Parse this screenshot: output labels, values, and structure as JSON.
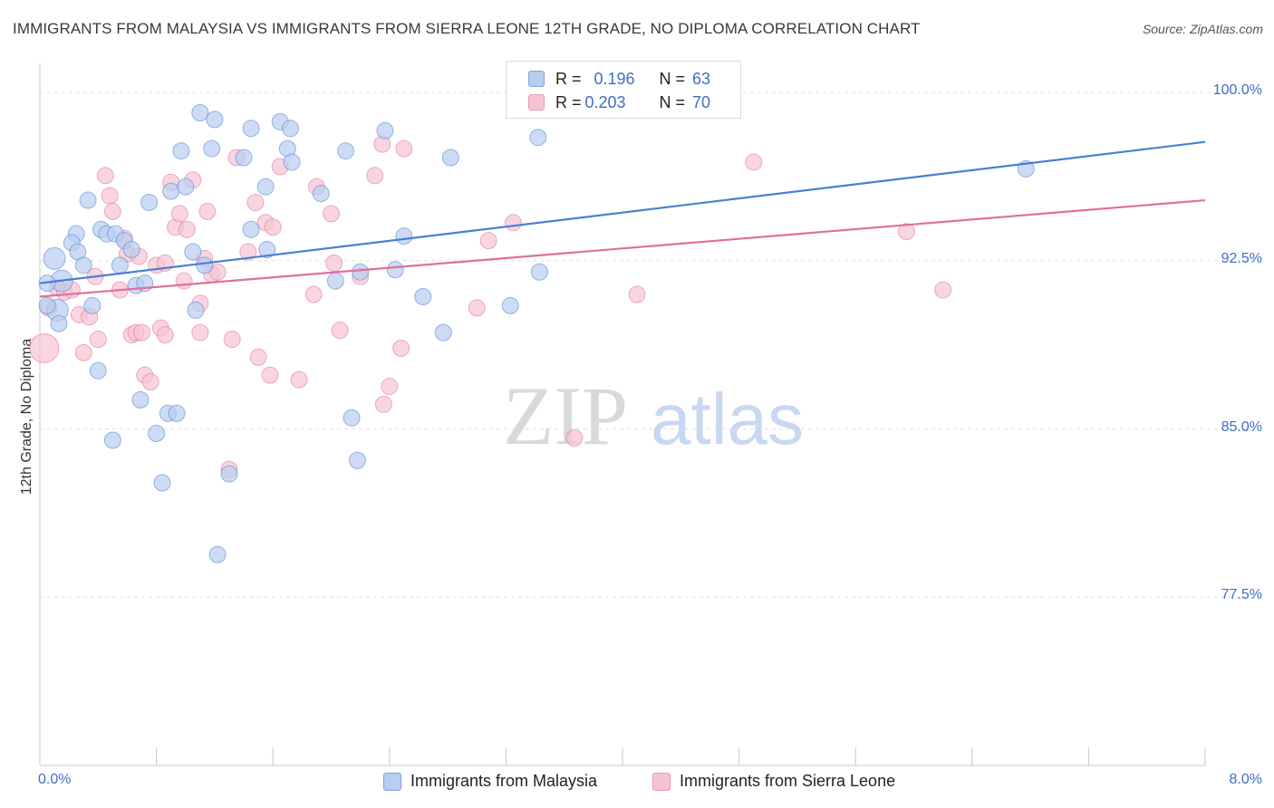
{
  "title": "IMMIGRANTS FROM MALAYSIA VS IMMIGRANTS FROM SIERRA LEONE 12TH GRADE, NO DIPLOMA CORRELATION CHART",
  "source": "Source: ZipAtlas.com",
  "watermark": {
    "zip": "ZIP",
    "atlas": "atlas"
  },
  "legend_stats": [
    {
      "r_label": "R =",
      "r_value": "0.196",
      "n_label": "N =",
      "n_value": "63",
      "color": "#4a7fd4"
    },
    {
      "r_label": "R =",
      "r_value": "0.203",
      "n_label": "N =",
      "n_value": "70",
      "color": "#e0709a"
    }
  ],
  "chart_data": {
    "type": "scatter",
    "title": "IMMIGRANTS FROM MALAYSIA VS IMMIGRANTS FROM SIERRA LEONE 12TH GRADE, NO DIPLOMA CORRELATION CHART",
    "xlabel": "",
    "ylabel": "12th Grade, No Diploma",
    "xlim": [
      0.0,
      8.0
    ],
    "ylim": [
      70.0,
      101.3
    ],
    "x_tick_labels": [
      "0.0%",
      "8.0%"
    ],
    "y_tick_labels": [
      "100.0%",
      "92.5%",
      "85.0%",
      "77.5%"
    ],
    "y_ticks": [
      100.0,
      92.5,
      85.0,
      77.5
    ],
    "grid": "horizontal dashed",
    "legend_position": "bottom-center",
    "series": [
      {
        "name": "Immigrants from Malaysia",
        "color": "#4a7fd4",
        "fill": "#b8cdef",
        "trend": {
          "x": [
            0.0,
            8.0
          ],
          "y": [
            91.5,
            97.8
          ]
        },
        "points": [
          [
            0.1,
            92.6
          ],
          [
            0.15,
            91.6
          ],
          [
            0.12,
            90.3
          ],
          [
            0.13,
            89.7
          ],
          [
            0.05,
            91.5
          ],
          [
            0.05,
            90.5
          ],
          [
            0.25,
            93.7
          ],
          [
            0.22,
            93.3
          ],
          [
            0.26,
            92.9
          ],
          [
            0.3,
            92.3
          ],
          [
            0.33,
            95.2
          ],
          [
            0.36,
            90.5
          ],
          [
            0.4,
            87.6
          ],
          [
            0.42,
            93.9
          ],
          [
            0.46,
            93.7
          ],
          [
            0.5,
            84.5
          ],
          [
            0.52,
            93.7
          ],
          [
            0.55,
            92.3
          ],
          [
            0.58,
            93.4
          ],
          [
            0.63,
            93.0
          ],
          [
            0.66,
            91.4
          ],
          [
            0.69,
            86.3
          ],
          [
            0.72,
            91.5
          ],
          [
            0.75,
            95.1
          ],
          [
            0.8,
            84.8
          ],
          [
            0.84,
            82.6
          ],
          [
            0.88,
            85.7
          ],
          [
            0.9,
            95.6
          ],
          [
            0.94,
            85.7
          ],
          [
            0.97,
            97.4
          ],
          [
            1.0,
            95.8
          ],
          [
            1.05,
            92.9
          ],
          [
            1.07,
            90.3
          ],
          [
            1.1,
            99.1
          ],
          [
            1.13,
            92.3
          ],
          [
            1.18,
            97.5
          ],
          [
            1.2,
            98.8
          ],
          [
            1.22,
            79.4
          ],
          [
            1.3,
            83.0
          ],
          [
            1.4,
            97.1
          ],
          [
            1.45,
            93.9
          ],
          [
            1.45,
            98.4
          ],
          [
            1.55,
            95.8
          ],
          [
            1.56,
            93.0
          ],
          [
            1.65,
            98.7
          ],
          [
            1.7,
            97.5
          ],
          [
            1.72,
            98.4
          ],
          [
            1.73,
            96.9
          ],
          [
            1.93,
            95.5
          ],
          [
            2.03,
            91.6
          ],
          [
            2.1,
            97.4
          ],
          [
            2.14,
            85.5
          ],
          [
            2.18,
            83.6
          ],
          [
            2.2,
            92.0
          ],
          [
            2.37,
            98.3
          ],
          [
            2.44,
            92.1
          ],
          [
            2.5,
            93.6
          ],
          [
            2.63,
            90.9
          ],
          [
            2.77,
            89.3
          ],
          [
            2.82,
            97.1
          ],
          [
            3.23,
            90.5
          ],
          [
            3.42,
            98.0
          ],
          [
            3.43,
            92.0
          ],
          [
            6.77,
            96.6
          ]
        ]
      },
      {
        "name": "Immigrants from Sierra Leone",
        "color": "#e0709a",
        "fill": "#f7c3d3",
        "trend": {
          "x": [
            0.0,
            8.0
          ],
          "y": [
            90.9,
            95.2
          ]
        },
        "points": [
          [
            0.03,
            88.6
          ],
          [
            0.06,
            90.4
          ],
          [
            0.12,
            91.3
          ],
          [
            0.17,
            91.1
          ],
          [
            0.22,
            91.2
          ],
          [
            0.27,
            90.1
          ],
          [
            0.3,
            88.4
          ],
          [
            0.34,
            90.0
          ],
          [
            0.38,
            91.8
          ],
          [
            0.4,
            89.0
          ],
          [
            0.45,
            96.3
          ],
          [
            0.48,
            95.4
          ],
          [
            0.5,
            94.7
          ],
          [
            0.55,
            91.2
          ],
          [
            0.58,
            93.5
          ],
          [
            0.6,
            92.8
          ],
          [
            0.63,
            89.2
          ],
          [
            0.66,
            89.3
          ],
          [
            0.68,
            92.7
          ],
          [
            0.7,
            89.3
          ],
          [
            0.72,
            87.4
          ],
          [
            0.76,
            87.1
          ],
          [
            0.8,
            92.3
          ],
          [
            0.83,
            89.5
          ],
          [
            0.86,
            92.4
          ],
          [
            0.86,
            89.2
          ],
          [
            0.9,
            96.0
          ],
          [
            0.93,
            94.0
          ],
          [
            0.96,
            94.6
          ],
          [
            0.99,
            91.6
          ],
          [
            1.01,
            93.9
          ],
          [
            1.05,
            96.1
          ],
          [
            1.1,
            90.6
          ],
          [
            1.1,
            89.3
          ],
          [
            1.13,
            92.6
          ],
          [
            1.15,
            94.7
          ],
          [
            1.18,
            91.9
          ],
          [
            1.22,
            92.0
          ],
          [
            1.3,
            83.2
          ],
          [
            1.32,
            89.0
          ],
          [
            1.35,
            97.1
          ],
          [
            1.43,
            92.9
          ],
          [
            1.48,
            95.1
          ],
          [
            1.5,
            88.2
          ],
          [
            1.55,
            94.2
          ],
          [
            1.58,
            87.4
          ],
          [
            1.6,
            94.0
          ],
          [
            1.65,
            96.7
          ],
          [
            1.78,
            87.2
          ],
          [
            1.88,
            91.0
          ],
          [
            1.9,
            95.8
          ],
          [
            2.0,
            94.6
          ],
          [
            2.02,
            92.4
          ],
          [
            2.06,
            89.4
          ],
          [
            2.2,
            91.8
          ],
          [
            2.3,
            96.3
          ],
          [
            2.35,
            97.7
          ],
          [
            2.36,
            86.1
          ],
          [
            2.4,
            86.9
          ],
          [
            2.48,
            88.6
          ],
          [
            2.5,
            97.5
          ],
          [
            3.0,
            90.4
          ],
          [
            3.08,
            93.4
          ],
          [
            3.25,
            94.2
          ],
          [
            3.45,
            100.1
          ],
          [
            3.67,
            84.6
          ],
          [
            4.1,
            91.0
          ],
          [
            4.9,
            96.9
          ],
          [
            5.95,
            93.8
          ],
          [
            6.2,
            91.2
          ]
        ]
      }
    ]
  },
  "bottom_legend": [
    {
      "label": "Immigrants from Malaysia"
    },
    {
      "label": "Immigrants from Sierra Leone"
    }
  ]
}
